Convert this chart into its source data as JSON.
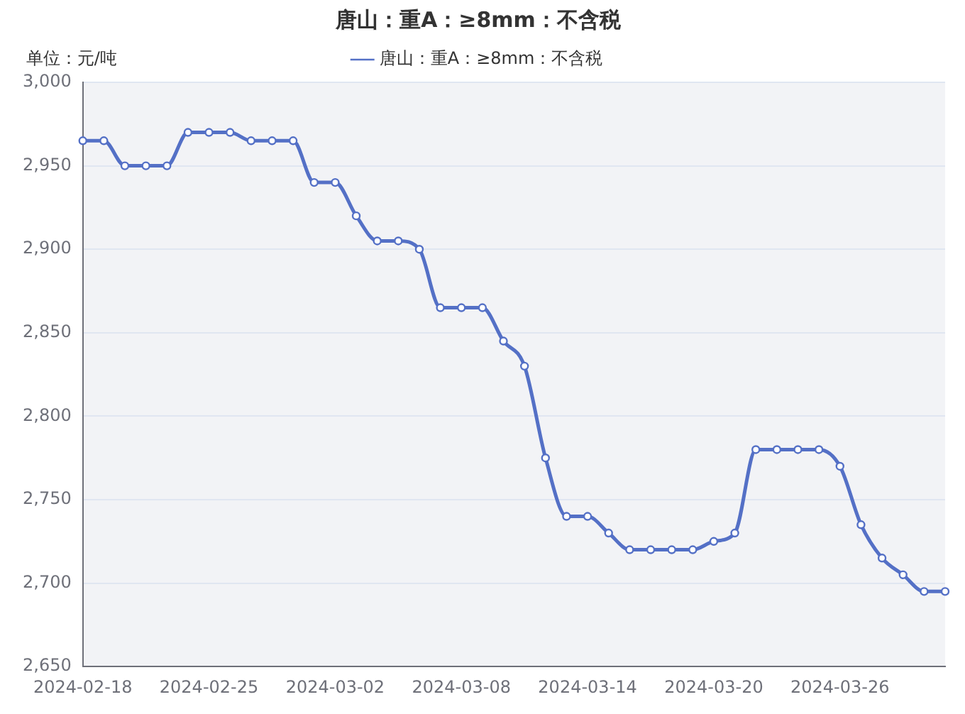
{
  "chart_data": {
    "type": "line",
    "title": "唐山：重A：≥8mm：不含税",
    "ylabel": "单位：元/吨",
    "categories": [
      "2024-02-18",
      null,
      null,
      null,
      null,
      null,
      "2024-02-25",
      null,
      null,
      null,
      null,
      null,
      "2024-03-02",
      null,
      null,
      null,
      null,
      null,
      "2024-03-08",
      null,
      null,
      null,
      null,
      null,
      "2024-03-14",
      null,
      null,
      null,
      null,
      null,
      "2024-03-20",
      null,
      null,
      null,
      null,
      null,
      "2024-03-26",
      null,
      null,
      null,
      null,
      null
    ],
    "series": [
      {
        "name": "唐山：重A：≥8mm：不含税",
        "color": "#5470c6",
        "values": [
          2965,
          2965,
          2950,
          2950,
          2950,
          2970,
          2970,
          2970,
          2965,
          2965,
          2965,
          2940,
          2940,
          2920,
          2905,
          2905,
          2900,
          2865,
          2865,
          2865,
          2845,
          2830,
          2775,
          2740,
          2740,
          2730,
          2720,
          2720,
          2720,
          2720,
          2725,
          2730,
          2780,
          2780,
          2780,
          2780,
          2770,
          2735,
          2715,
          2705,
          2695,
          2695
        ]
      }
    ],
    "ylim": [
      2650,
      3000
    ],
    "yticks": [
      {
        "value": 2650,
        "label": "2,650"
      },
      {
        "value": 2700,
        "label": "2,700"
      },
      {
        "value": 2750,
        "label": "2,750"
      },
      {
        "value": 2800,
        "label": "2,800"
      },
      {
        "value": 2850,
        "label": "2,850"
      },
      {
        "value": 2900,
        "label": "2,900"
      },
      {
        "value": 2950,
        "label": "2,950"
      },
      {
        "value": 3000,
        "label": "3,000"
      }
    ],
    "grid": "y",
    "legend": "top",
    "marker": "circle",
    "line_style": "solid"
  }
}
